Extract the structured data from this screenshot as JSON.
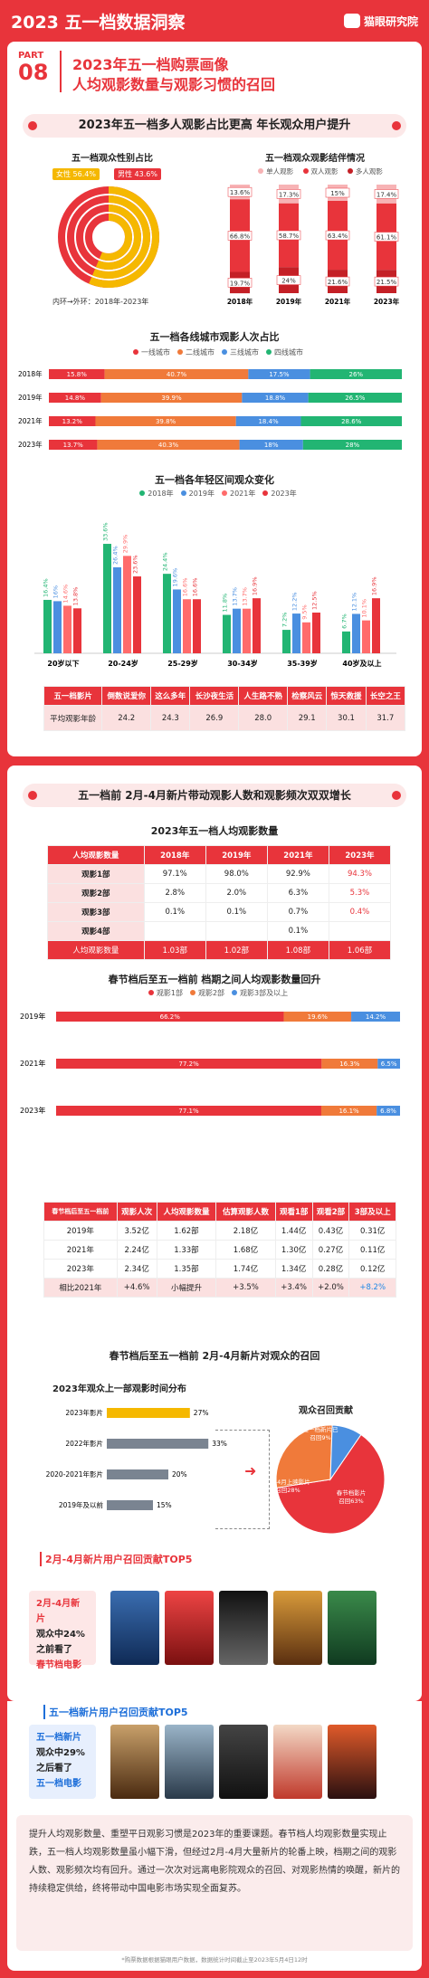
{
  "header": {
    "title": "2023 五一档数据洞察",
    "brand": "猫眼研究院"
  },
  "part": {
    "label": "PART",
    "num": "08",
    "title1": "2023年五一档购票画像",
    "title2": "人均观影数量与观影习惯的召回"
  },
  "s1": {
    "title": "2023年五一档多人观影占比更高 年长观众用户提升"
  },
  "gender": {
    "title": "五一档观众性别占比",
    "female": "女性 56.4%",
    "male": "男性 43.6%",
    "note": "内环→外环：2018年-2023年",
    "colors": {
      "female": "#f5b800",
      "male": "#e8343b"
    }
  },
  "struct_chart": {
    "title": "五一档观众观影结伴情况",
    "legend": [
      "单人观影",
      "双人观影",
      "多人观影"
    ]
  },
  "city_chart": {
    "title": "五一档各线城市观影人次占比",
    "legend": [
      "一线城市",
      "二线城市",
      "三线城市",
      "四线城市"
    ]
  },
  "age_chart": {
    "title": "五一档各年轻区间观众变化",
    "legend": [
      "2018年",
      "2019年",
      "2021年",
      "2023年"
    ]
  },
  "age_table": {
    "headers": [
      "五一档影片",
      "倒数说爱你",
      "这么多年",
      "长沙夜生活",
      "人生路不熟",
      "检察风云",
      "惊天救援",
      "长空之王"
    ],
    "rowlabel": "平均观影年龄",
    "values": [
      "24.2",
      "24.3",
      "26.9",
      "28.0",
      "29.1",
      "30.1",
      "31.7"
    ]
  },
  "s2": {
    "title": "五一档前 2月-4月新片带动观影人数和观影频次双双增长"
  },
  "per_capita": {
    "title": "2023年五一档人均观影数量",
    "headers": [
      "人均观影数量",
      "2018年",
      "2019年",
      "2021年",
      "2023年"
    ],
    "rows": [
      [
        "观影1部",
        "97.1%",
        "98.0%",
        "92.9%",
        "94.3%"
      ],
      [
        "观影2部",
        "2.8%",
        "2.0%",
        "6.3%",
        "5.3%"
      ],
      [
        "观影3部",
        "0.1%",
        "0.1%",
        "0.7%",
        "0.4%"
      ],
      [
        "观影4部",
        "",
        "",
        "0.1%",
        ""
      ]
    ],
    "avg": [
      "人均观影数量",
      "1.03部",
      "1.02部",
      "1.08部",
      "1.06部"
    ]
  },
  "recovery": {
    "title": "春节档后至五一档前 档期之间人均观影数量回升",
    "legend": [
      "观影1部",
      "观影2部",
      "观影3部及以上"
    ]
  },
  "stat_table": {
    "headers": [
      "春节档后至五一档前",
      "观影人次",
      "人均观影数量",
      "估算观影人数",
      "观看1部",
      "观看2部",
      "3部及以上"
    ],
    "rows": [
      [
        "2019年",
        "3.52亿",
        "1.62部",
        "2.18亿",
        "1.44亿",
        "0.43亿",
        "0.31亿"
      ],
      [
        "2021年",
        "2.24亿",
        "1.33部",
        "1.68亿",
        "1.30亿",
        "0.27亿",
        "0.11亿"
      ],
      [
        "2023年",
        "2.34亿",
        "1.35部",
        "1.74亿",
        "1.34亿",
        "0.28亿",
        "0.12亿"
      ],
      [
        "相比2021年",
        "+4.6%",
        "小幅提升",
        "+3.5%",
        "+3.4%",
        "+2.0%",
        "+8.2%"
      ]
    ]
  },
  "recall": {
    "title": "春节档后至五一档前 2月-4月新片对观众的召回",
    "sub": "2023年观众上一部观影时间分布",
    "pie_title": "观众召回贡献",
    "pie_labels": [
      "五一档新片已召回9%",
      "2月-4月上映影片召回28%",
      "春节档影片召回63%"
    ]
  },
  "top5a": {
    "title": "2月-4月新片用户召回贡献TOP5",
    "side": [
      "2月-4月新片",
      "观众中24%",
      "之前看了",
      "春节档电影"
    ]
  },
  "top5b": {
    "title": "五一档新片用户召回贡献TOP5",
    "side": [
      "五一档新片",
      "观众中29%",
      "之后看了",
      "五一档电影"
    ]
  },
  "summary": {
    "text": "提升人均观影数量、重塑平日观影习惯是2023年的重要课题。春节档人均观影数量实现止跌，五一档人均观影数量虽小幅下滑，但经过2月-4月大量新片的轮番上映，档期之间的观影人数、观影频次均有回升。通过一次次对远离电影院观众的召回、对观影热情的唤醒，新片的持续稳定供给，终将带动中国电影市场实现全面复苏。",
    "foot": "*购票数据根据猫眼用户数据，数据统计时间截止至2023年5月4日12时"
  },
  "chart_data": [
    {
      "type": "pie",
      "title": "五一档观众性别占比",
      "series": [
        {
          "name": "女性",
          "values": [
            56.4
          ]
        },
        {
          "name": "男性",
          "values": [
            43.6
          ]
        }
      ]
    },
    {
      "type": "bar",
      "title": "五一档观众观影结伴情况",
      "categories": [
        "2018年",
        "2019年",
        "2021年",
        "2023年"
      ],
      "series": [
        {
          "name": "单人观影",
          "values": [
            13.6,
            17.3,
            15.0,
            17.4
          ]
        },
        {
          "name": "双人观影",
          "values": [
            66.8,
            58.7,
            63.4,
            61.1
          ]
        },
        {
          "name": "多人观影",
          "values": [
            19.7,
            24.0,
            21.6,
            21.5
          ]
        }
      ]
    },
    {
      "type": "bar",
      "title": "五一档各线城市观影人次占比",
      "categories": [
        "2018年",
        "2019年",
        "2021年",
        "2023年"
      ],
      "series": [
        {
          "name": "一线城市",
          "values": [
            15.8,
            14.8,
            13.2,
            13.7
          ]
        },
        {
          "name": "二线城市",
          "values": [
            40.7,
            39.9,
            39.8,
            40.3
          ]
        },
        {
          "name": "三线城市",
          "values": [
            17.5,
            18.8,
            18.4,
            18.0
          ]
        },
        {
          "name": "四线城市",
          "values": [
            26.0,
            26.5,
            28.6,
            28.0
          ]
        }
      ]
    },
    {
      "type": "bar",
      "title": "五一档各年轻区间观众变化",
      "categories": [
        "20岁以下",
        "20-24岁",
        "25-29岁",
        "30-34岁",
        "35-39岁",
        "40岁及以上"
      ],
      "series": [
        {
          "name": "2018年",
          "values": [
            16.4,
            33.6,
            24.4,
            11.8,
            7.2,
            6.7
          ]
        },
        {
          "name": "2019年",
          "values": [
            16.0,
            26.4,
            19.6,
            13.7,
            12.2,
            12.1
          ]
        },
        {
          "name": "2021年",
          "values": [
            14.6,
            29.9,
            16.6,
            13.7,
            9.5,
            10.1
          ]
        },
        {
          "name": "2023年",
          "values": [
            13.8,
            23.6,
            16.6,
            16.9,
            12.5,
            16.9
          ]
        }
      ]
    },
    {
      "type": "bar",
      "title": "春节档后至五一档前 档期之间人均观影数量回升",
      "categories": [
        "2019年",
        "2021年",
        "2023年"
      ],
      "series": [
        {
          "name": "观影1部",
          "values": [
            66.2,
            77.2,
            77.1
          ]
        },
        {
          "name": "观影2部",
          "values": [
            19.6,
            16.3,
            16.1
          ]
        },
        {
          "name": "观影3部及以上",
          "values": [
            14.2,
            6.5,
            6.8
          ]
        }
      ]
    },
    {
      "type": "bar",
      "title": "2023年观众上一部观影时间分布",
      "categories": [
        "2023年影片",
        "2022年影片",
        "2020-2021年影片",
        "2019年及以前"
      ],
      "values": [
        27,
        33,
        20,
        15
      ]
    },
    {
      "type": "pie",
      "title": "观众召回贡献",
      "series": [
        {
          "name": "春节档影片",
          "values": [
            63
          ]
        },
        {
          "name": "2月-4月上映影片",
          "values": [
            28
          ]
        },
        {
          "name": "五一档新片",
          "values": [
            9
          ]
        }
      ]
    }
  ]
}
